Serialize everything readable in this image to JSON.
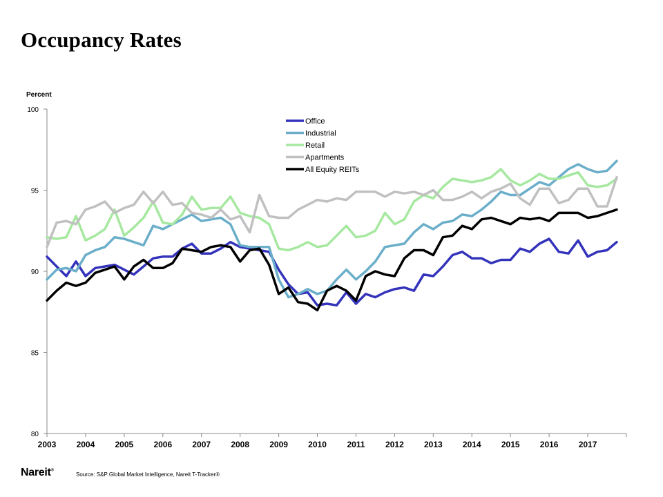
{
  "page": {
    "title": "Occupancy Rates",
    "logo_text": "Nareit",
    "source": "Source: S&P Global Market Intelligence, Nareit T-Tracker®"
  },
  "chart_data": {
    "type": "line",
    "title": "",
    "ylabel": "Percent",
    "xlabel": "",
    "ylim": [
      80,
      100
    ],
    "yticks": [
      80,
      85,
      90,
      95,
      100
    ],
    "xlim": [
      2003,
      2018
    ],
    "xticks": [
      "2003",
      "2004",
      "2005",
      "2006",
      "2007",
      "2008",
      "2009",
      "2010",
      "2011",
      "2012",
      "2013",
      "2014",
      "2015",
      "2016",
      "2017"
    ],
    "legend_position": "top-center",
    "grid": false,
    "x": [
      2003.0,
      2003.25,
      2003.5,
      2003.75,
      2004.0,
      2004.25,
      2004.5,
      2004.75,
      2005.0,
      2005.25,
      2005.5,
      2005.75,
      2006.0,
      2006.25,
      2006.5,
      2006.75,
      2007.0,
      2007.25,
      2007.5,
      2007.75,
      2008.0,
      2008.25,
      2008.5,
      2008.75,
      2009.0,
      2009.25,
      2009.5,
      2009.75,
      2010.0,
      2010.25,
      2010.5,
      2010.75,
      2011.0,
      2011.25,
      2011.5,
      2011.75,
      2012.0,
      2012.25,
      2012.5,
      2012.75,
      2013.0,
      2013.25,
      2013.5,
      2013.75,
      2014.0,
      2014.25,
      2014.5,
      2014.75,
      2015.0,
      2015.25,
      2015.5,
      2015.75,
      2016.0,
      2016.25,
      2016.5,
      2016.75,
      2017.0,
      2017.25,
      2017.5,
      2017.75
    ],
    "series": [
      {
        "name": "Office",
        "color": "#3333bb",
        "values": [
          90.9,
          90.3,
          89.7,
          90.6,
          89.7,
          90.2,
          90.3,
          90.4,
          90.1,
          89.8,
          90.3,
          90.8,
          90.9,
          90.9,
          91.4,
          91.7,
          91.1,
          91.1,
          91.4,
          91.8,
          91.5,
          91.4,
          91.3,
          91.2,
          90.1,
          89.2,
          88.6,
          88.7,
          87.9,
          88.0,
          87.9,
          88.7,
          88.0,
          88.6,
          88.4,
          88.7,
          88.9,
          89.0,
          88.8,
          89.8,
          89.7,
          90.3,
          91.0,
          91.2,
          90.8,
          90.8,
          90.5,
          90.7,
          90.7,
          91.4,
          91.2,
          91.7,
          92.0,
          91.2,
          91.1,
          91.9,
          90.9,
          91.2,
          91.3,
          91.8
        ]
      },
      {
        "name": "Industrial",
        "color": "#6aaec9",
        "values": [
          89.5,
          90.1,
          90.2,
          90.0,
          91.0,
          91.3,
          91.5,
          92.1,
          92.0,
          91.8,
          91.6,
          92.8,
          92.6,
          92.9,
          93.2,
          93.5,
          93.1,
          93.2,
          93.3,
          92.9,
          91.6,
          91.5,
          91.5,
          91.5,
          89.5,
          88.4,
          88.6,
          88.9,
          88.6,
          88.8,
          89.5,
          90.1,
          89.5,
          90.0,
          90.6,
          91.5,
          91.6,
          91.7,
          92.4,
          92.9,
          92.6,
          93.0,
          93.1,
          93.5,
          93.4,
          93.8,
          94.3,
          94.9,
          94.7,
          94.7,
          95.1,
          95.5,
          95.3,
          95.8,
          96.3,
          96.6,
          96.3,
          96.1,
          96.2,
          96.8
        ]
      },
      {
        "name": "Retail",
        "color": "#a6e8a0",
        "values": [
          92.1,
          92.0,
          92.1,
          93.4,
          91.9,
          92.2,
          92.6,
          93.8,
          92.2,
          92.7,
          93.3,
          94.3,
          93.0,
          92.9,
          93.5,
          94.6,
          93.8,
          93.9,
          93.9,
          94.6,
          93.6,
          93.4,
          93.3,
          92.9,
          91.4,
          91.3,
          91.5,
          91.8,
          91.5,
          91.6,
          92.2,
          92.8,
          92.1,
          92.2,
          92.5,
          93.6,
          92.9,
          93.2,
          94.3,
          94.7,
          94.5,
          95.2,
          95.7,
          95.6,
          95.5,
          95.6,
          95.8,
          96.3,
          95.6,
          95.3,
          95.6,
          96.0,
          95.7,
          95.7,
          95.9,
          96.1,
          95.3,
          95.2,
          95.3,
          95.7
        ]
      },
      {
        "name": "Apartments",
        "color": "#c0c0c0",
        "values": [
          91.5,
          93.0,
          93.1,
          92.9,
          93.8,
          94.0,
          94.3,
          93.6,
          93.9,
          94.1,
          94.9,
          94.2,
          94.9,
          94.1,
          94.2,
          93.6,
          93.5,
          93.3,
          93.8,
          93.2,
          93.4,
          92.4,
          94.7,
          93.4,
          93.3,
          93.3,
          93.8,
          94.1,
          94.4,
          94.3,
          94.5,
          94.4,
          94.9,
          94.9,
          94.9,
          94.6,
          94.9,
          94.8,
          94.9,
          94.7,
          95.0,
          94.4,
          94.4,
          94.6,
          94.9,
          94.5,
          94.9,
          95.1,
          95.4,
          94.5,
          94.1,
          95.1,
          95.1,
          94.2,
          94.4,
          95.1,
          95.1,
          94.0,
          94.0,
          95.8
        ]
      },
      {
        "name": "All Equity REITs",
        "color": "#000000",
        "values": [
          88.2,
          88.8,
          89.3,
          89.1,
          89.3,
          89.9,
          90.1,
          90.3,
          89.5,
          90.3,
          90.7,
          90.2,
          90.2,
          90.5,
          91.4,
          91.3,
          91.2,
          91.5,
          91.6,
          91.5,
          90.6,
          91.3,
          91.4,
          90.4,
          88.6,
          89.0,
          88.1,
          88.0,
          87.6,
          88.8,
          89.1,
          88.8,
          88.2,
          89.7,
          90.0,
          89.8,
          89.7,
          90.8,
          91.3,
          91.3,
          91.0,
          92.1,
          92.2,
          92.8,
          92.6,
          93.2,
          93.3,
          93.1,
          92.9,
          93.3,
          93.2,
          93.3,
          93.1,
          93.6,
          93.6,
          93.6,
          93.3,
          93.4,
          93.6,
          93.8
        ]
      }
    ]
  }
}
